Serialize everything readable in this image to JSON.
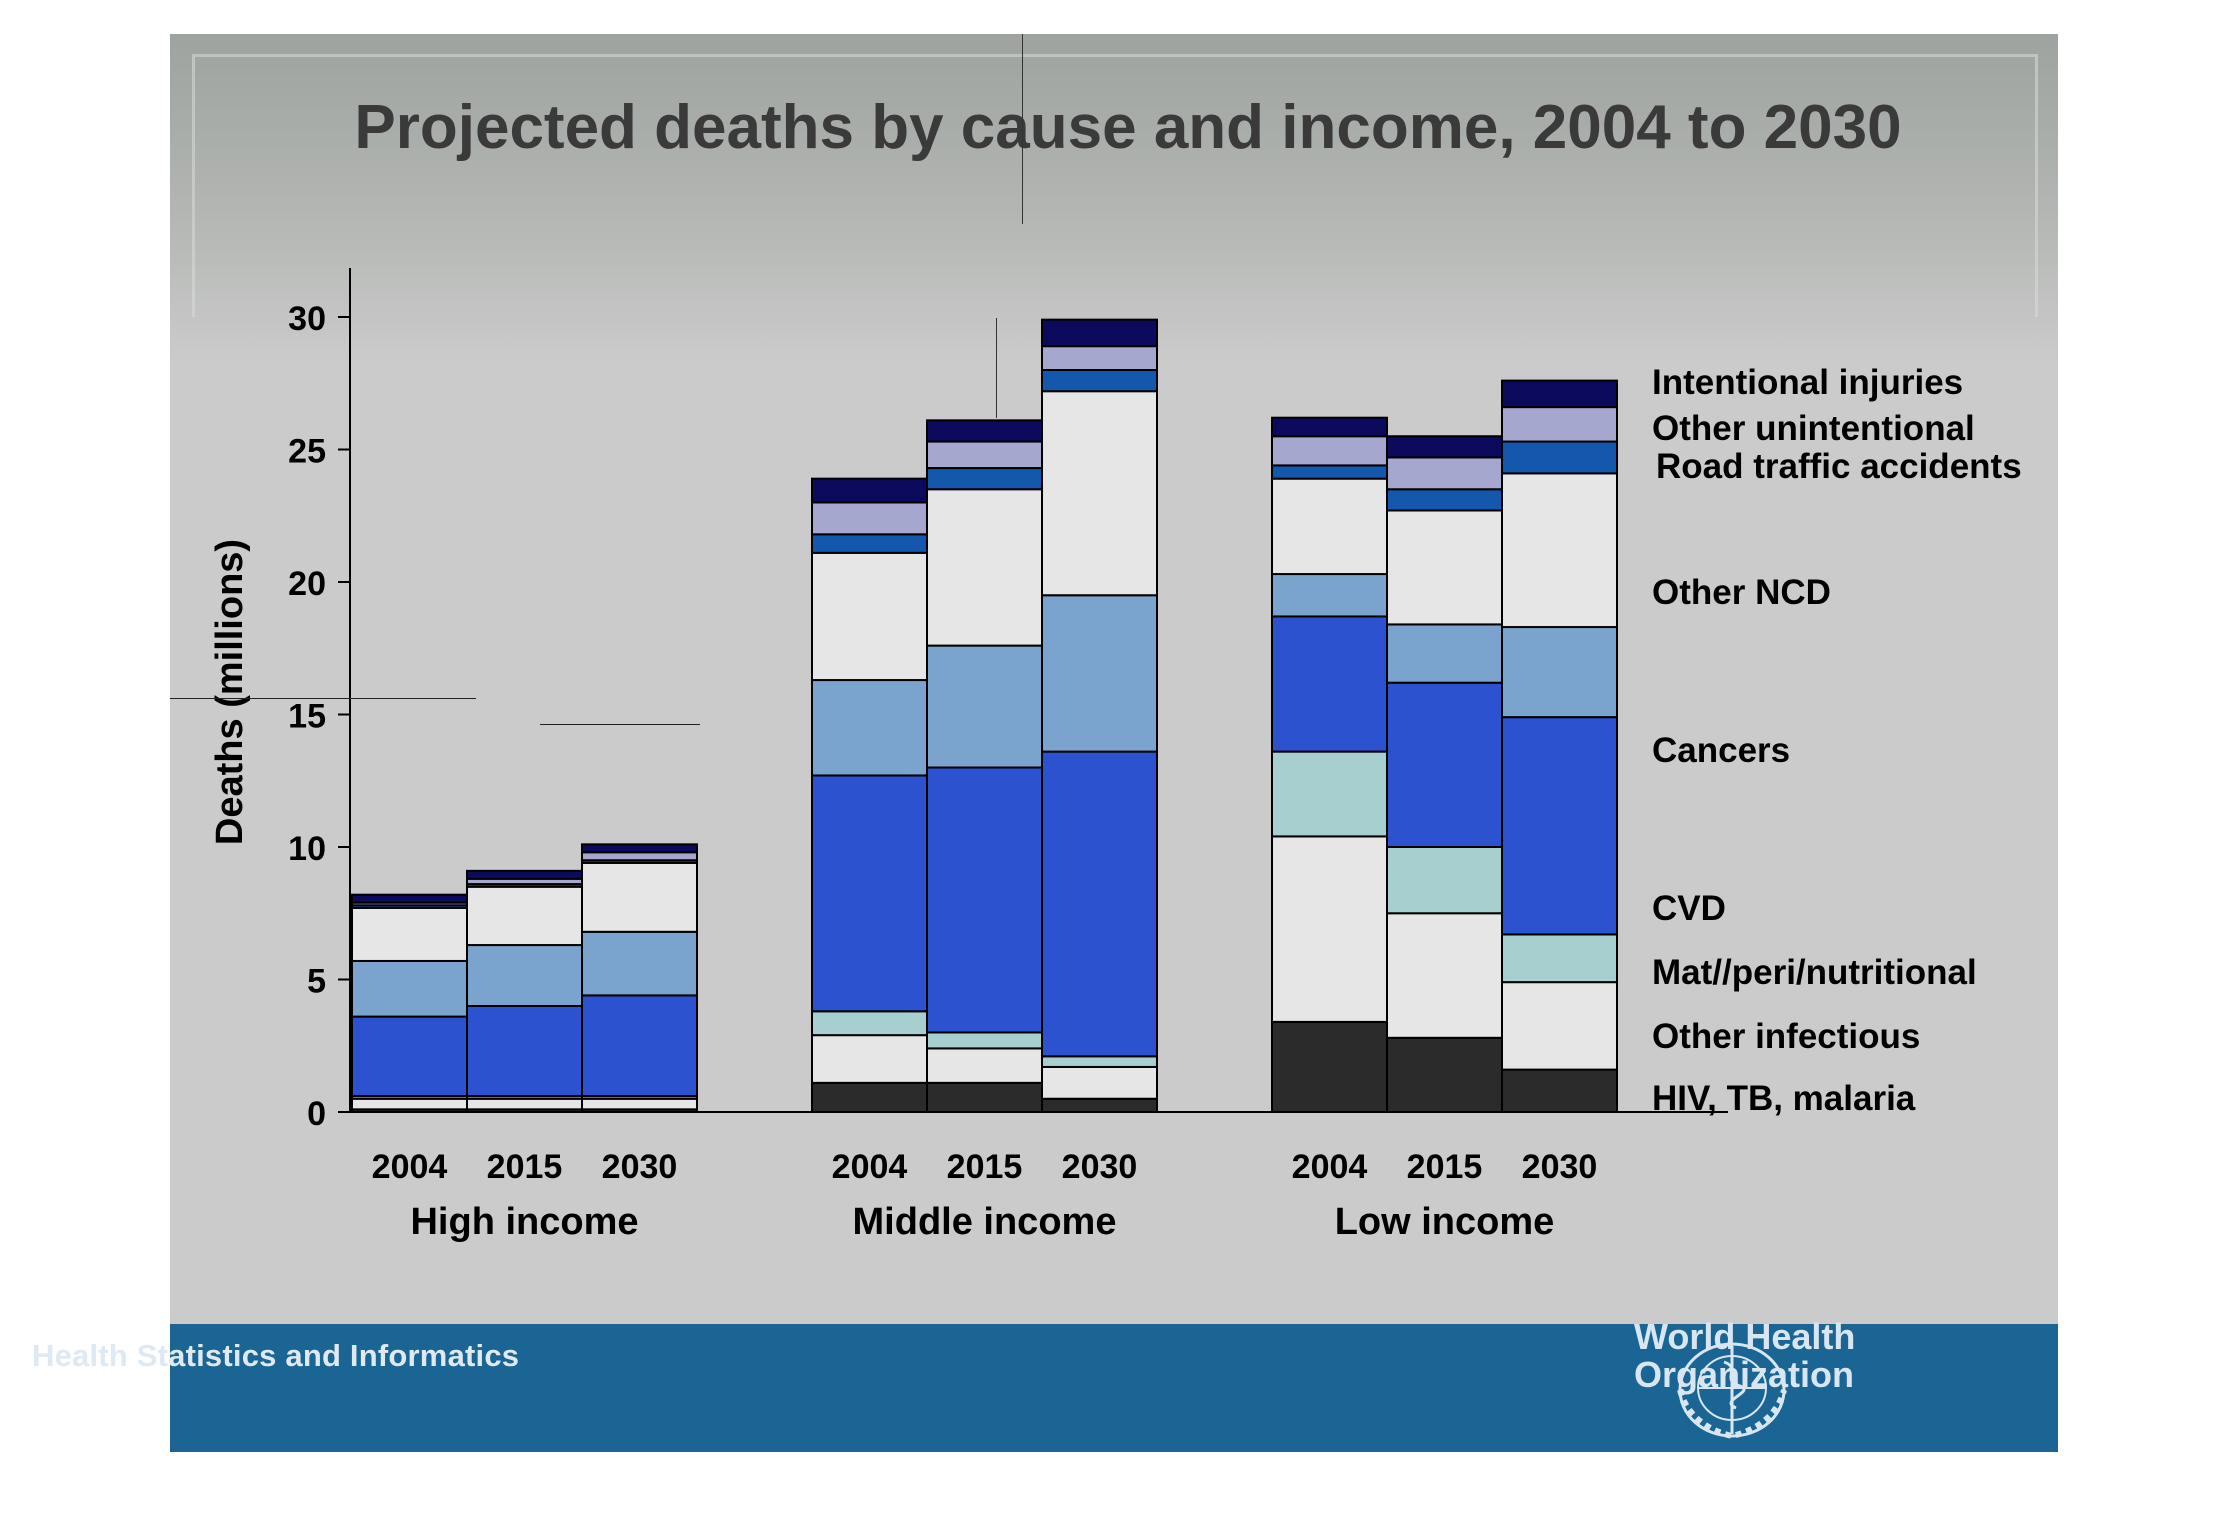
{
  "header": {
    "title": "Projected deaths by cause and income, 2004 to 2030"
  },
  "footer": {
    "program": "Health Statistics and Informatics",
    "org_line1": "World Health",
    "org_line2": "Organization"
  },
  "colors": {
    "hiv_tb_malaria": "#2b2b2b",
    "other_infectious": "#e6e6e6",
    "mat_peri_nutritional": "#a7cfcf",
    "cvd": "#2c52d0",
    "cancers": "#7aa3cd",
    "other_ncd": "#e6e6e6",
    "road_traffic": "#1358ad",
    "other_unintentional": "#a6a7cf",
    "intentional": "#0b0a5d",
    "footer": "#1a6594",
    "slide_bg": "#cbcbcb"
  },
  "chart_data": {
    "type": "bar",
    "stacked": true,
    "ylabel": "Deaths (millions)",
    "ylim": [
      0,
      32
    ],
    "yticks": [
      "0",
      "5",
      "10",
      "15",
      "20",
      "25",
      "30"
    ],
    "groups": [
      "High income",
      "Middle income",
      "Low income"
    ],
    "categories": [
      "2004",
      "2015",
      "2030"
    ],
    "series": [
      {
        "name": "HIV, TB, malaria",
        "values": [
          [
            0.1,
            0.1,
            0.1
          ],
          [
            1.1,
            1.1,
            0.5
          ],
          [
            3.4,
            2.8,
            1.6
          ]
        ]
      },
      {
        "name": "Other infectious",
        "values": [
          [
            0.4,
            0.4,
            0.4
          ],
          [
            1.8,
            1.3,
            1.2
          ],
          [
            7.0,
            4.7,
            3.3
          ]
        ]
      },
      {
        "name": "Mat//peri/nutritional",
        "values": [
          [
            0.1,
            0.1,
            0.1
          ],
          [
            0.9,
            0.6,
            0.4
          ],
          [
            3.2,
            2.5,
            1.8
          ]
        ]
      },
      {
        "name": "CVD",
        "values": [
          [
            3.0,
            3.4,
            3.8
          ],
          [
            8.9,
            10.0,
            11.5
          ],
          [
            5.1,
            6.2,
            8.2
          ]
        ]
      },
      {
        "name": "Cancers",
        "values": [
          [
            2.1,
            2.3,
            2.4
          ],
          [
            3.6,
            4.6,
            5.9
          ],
          [
            1.6,
            2.2,
            3.4
          ]
        ]
      },
      {
        "name": "Other NCD",
        "values": [
          [
            2.0,
            2.2,
            2.6
          ],
          [
            4.8,
            5.9,
            7.7
          ],
          [
            3.6,
            4.3,
            5.8
          ]
        ]
      },
      {
        "name": "Road traffic accidents",
        "values": [
          [
            0.1,
            0.1,
            0.1
          ],
          [
            0.7,
            0.8,
            0.8
          ],
          [
            0.5,
            0.8,
            1.2
          ]
        ]
      },
      {
        "name": "Other unintentional",
        "values": [
          [
            0.1,
            0.2,
            0.3
          ],
          [
            1.2,
            1.0,
            0.9
          ],
          [
            1.1,
            1.2,
            1.3
          ]
        ]
      },
      {
        "name": "Intentional injuries",
        "values": [
          [
            0.3,
            0.3,
            0.3
          ],
          [
            0.9,
            0.8,
            1.0
          ],
          [
            0.7,
            0.8,
            1.0
          ]
        ]
      }
    ]
  }
}
